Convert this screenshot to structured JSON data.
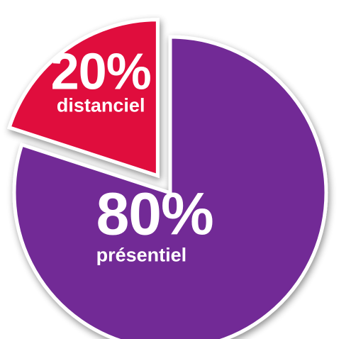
{
  "chart_data": {
    "type": "pie",
    "title": "",
    "slices": [
      {
        "label": "présentiel",
        "value": 80,
        "value_label": "80%",
        "color": "#722c96"
      },
      {
        "label": "distanciel",
        "value": 20,
        "value_label": "20%",
        "color": "#e0073c"
      }
    ],
    "start_angle_deg": 0,
    "direction": "clockwise",
    "exploded_slice": "distanciel",
    "outline_color": "#ffffff",
    "legend": "none"
  }
}
